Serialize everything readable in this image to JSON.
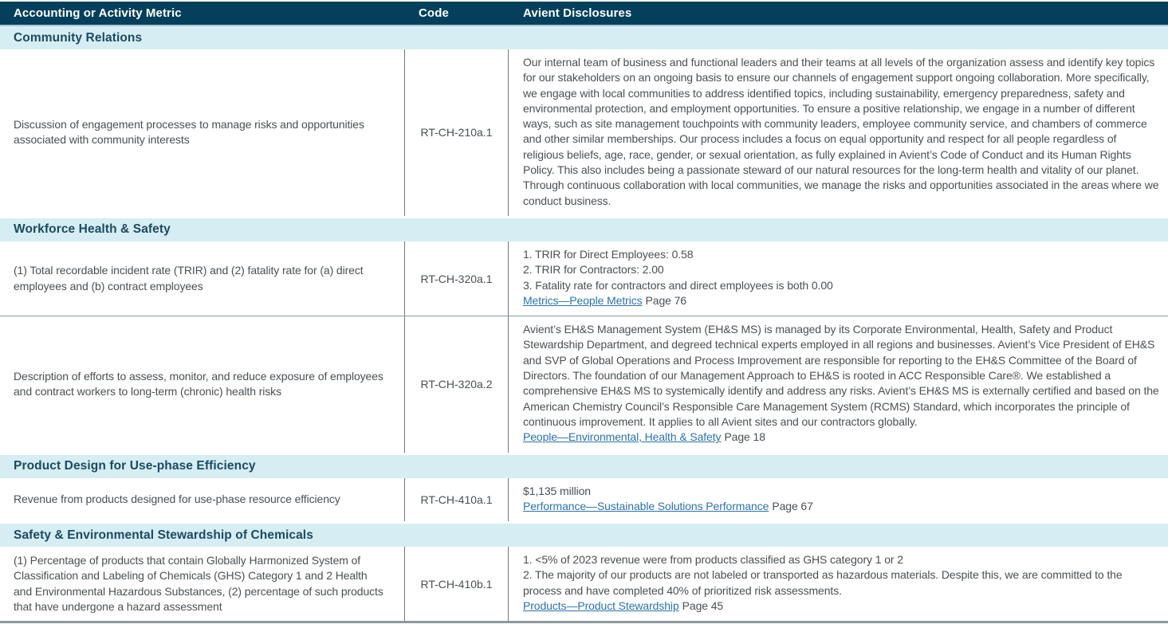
{
  "table": {
    "columns": [
      "Accounting or Activity Metric",
      "Code",
      "Avient Disclosures"
    ],
    "sections": [
      {
        "title": "Community Relations",
        "rows": [
          {
            "metric": "Discussion of engagement processes to manage risks and opportunities associated with community interests",
            "code": "RT-CH-210a.1",
            "lines": [
              "Our internal team of business and functional leaders and their teams at all levels of the organization assess and identify key topics for our stakeholders on an ongoing basis to ensure our channels of engagement support ongoing collaboration. More specifically, we engage with local communities to address identified topics, including sustainability, emergency preparedness, safety and environmental protection, and employment opportunities. To ensure a positive relationship, we engage in a number of different ways, such as site management touchpoints with community leaders, employee community service, and chambers of commerce and other similar memberships. Our process includes a focus on equal opportunity and respect for all people regardless of religious beliefs, age, race, gender, or sexual orientation, as fully explained in Avient’s Code of Conduct and its Human Rights Policy. This also includes being a passionate steward of our natural resources for the long-term health and vitality of our planet. Through continuous collaboration with local communities, we manage the risks and opportunities associated in the areas where we conduct business."
            ],
            "link": null
          }
        ]
      },
      {
        "title": "Workforce Health & Safety",
        "rows": [
          {
            "metric": "(1) Total recordable incident rate (TRIR) and (2) fatality rate for (a) direct employees and (b) contract employees",
            "code": "RT-CH-320a.1",
            "lines": [
              "1. TRIR for Direct Employees: 0.58",
              "2. TRIR for Contractors: 2.00",
              "3. Fatality rate for contractors and direct employees is both 0.00"
            ],
            "link": {
              "text": "Metrics—People Metrics",
              "suffix": "Page 76"
            }
          },
          {
            "metric": "Description of efforts to assess, monitor, and reduce exposure of employees and contract workers to long-term (chronic) health risks",
            "code": "RT-CH-320a.2",
            "lines": [
              "Avient’s EH&S Management System (EH&S MS) is managed by its Corporate Environmental, Health, Safety and Product Stewardship Department, and degreed technical experts employed in all regions and businesses. Avient’s Vice President of EH&S and SVP of Global Operations and Process Improvement are responsible for reporting to the EH&S Committee of the Board of Directors. The foundation of our Management Approach to EH&S is rooted in ACC Responsible Care®. We established a comprehensive EH&S MS to systemically identify and address any risks. Avient’s EH&S MS is externally certified and based on the American Chemistry Council’s Responsible Care Management System (RCMS) Standard, which incorporates the principle of continuous improvement. It applies to all Avient sites and our contractors globally."
            ],
            "link": {
              "text": "People—Environmental, Health & Safety",
              "suffix": "Page 18"
            }
          }
        ]
      },
      {
        "title": "Product Design for Use-phase Efficiency",
        "rows": [
          {
            "metric": "Revenue from products designed for use-phase resource efficiency",
            "code": "RT-CH-410a.1",
            "lines": [
              "$1,135 million"
            ],
            "link": {
              "text": "Performance—Sustainable Solutions Performance",
              "suffix": "Page 67"
            }
          }
        ]
      },
      {
        "title": "Safety & Environmental Stewardship of Chemicals",
        "rows": [
          {
            "metric": "(1) Percentage of products that contain Globally Harmonized System of Classification and Labeling of Chemicals (GHS) Category 1 and 2 Health and Environmental Hazardous Substances, (2) percentage of such products that have undergone a hazard assessment",
            "code": "RT-CH-410b.1",
            "lines": [
              "1. <5% of 2023 revenue were from products classified as GHS category 1 or 2",
              "2. The majority of our products are not labeled or transported as hazardous materials. Despite this, we are committed to the process and have completed 40% of prioritized risk assessments."
            ],
            "link": {
              "text": "Products—Product Stewardship",
              "suffix": "Page 45"
            }
          }
        ]
      }
    ]
  }
}
